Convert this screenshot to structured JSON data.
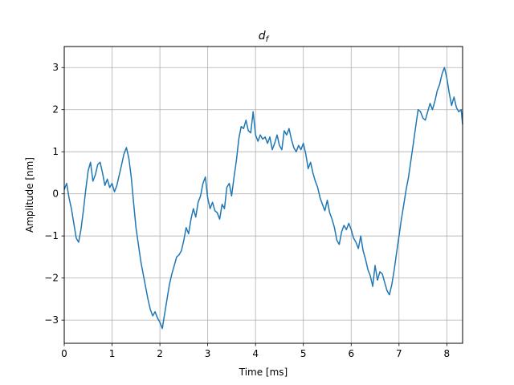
{
  "chart_data": {
    "type": "line",
    "title": "d_f",
    "title_main": "d",
    "title_sub": "f",
    "xlabel": "Time [ms]",
    "ylabel": "Amplitude [nm]",
    "xlim": [
      0,
      8.33
    ],
    "ylim": [
      -3.55,
      3.5
    ],
    "xticks": [
      0,
      1,
      2,
      3,
      4,
      5,
      6,
      7,
      8
    ],
    "xtick_labels": [
      "0",
      "1",
      "2",
      "3",
      "4",
      "5",
      "6",
      "7",
      "8"
    ],
    "yticks": [
      -3,
      -2,
      -1,
      0,
      1,
      2,
      3
    ],
    "ytick_labels": [
      "−3",
      "−2",
      "−1",
      "0",
      "1",
      "2",
      "3"
    ],
    "grid": true,
    "line_color": "#1f77b4",
    "series": [
      {
        "x": [
          0.0,
          0.05,
          0.1,
          0.15,
          0.2,
          0.25,
          0.3,
          0.35,
          0.4,
          0.45,
          0.5,
          0.55,
          0.6,
          0.65,
          0.7,
          0.75,
          0.8,
          0.85,
          0.9,
          0.95,
          1.0,
          1.05,
          1.1,
          1.15,
          1.2,
          1.25,
          1.3,
          1.35,
          1.4,
          1.45,
          1.5,
          1.55,
          1.6,
          1.65,
          1.7,
          1.75,
          1.8,
          1.85,
          1.9,
          1.95,
          2.0,
          2.05,
          2.1,
          2.15,
          2.2,
          2.25,
          2.3,
          2.35,
          2.4,
          2.45,
          2.5,
          2.55,
          2.6,
          2.65,
          2.7,
          2.75,
          2.8,
          2.85,
          2.9,
          2.95,
          3.0,
          3.05,
          3.1,
          3.15,
          3.2,
          3.25,
          3.3,
          3.35,
          3.4,
          3.45,
          3.5,
          3.55,
          3.6,
          3.65,
          3.7,
          3.75,
          3.8,
          3.85,
          3.9,
          3.95,
          4.0,
          4.05,
          4.1,
          4.15,
          4.2,
          4.25,
          4.3,
          4.35,
          4.4,
          4.45,
          4.5,
          4.55,
          4.6,
          4.65,
          4.7,
          4.75,
          4.8,
          4.85,
          4.9,
          4.95,
          5.0,
          5.05,
          5.1,
          5.15,
          5.2,
          5.25,
          5.3,
          5.35,
          5.4,
          5.45,
          5.5,
          5.55,
          5.6,
          5.65,
          5.7,
          5.75,
          5.8,
          5.85,
          5.9,
          5.95,
          6.0,
          6.05,
          6.1,
          6.15,
          6.2,
          6.25,
          6.3,
          6.35,
          6.4,
          6.45,
          6.5,
          6.55,
          6.6,
          6.65,
          6.7,
          6.75,
          6.8,
          6.85,
          6.9,
          6.95,
          7.0,
          7.05,
          7.1,
          7.15,
          7.2,
          7.25,
          7.3,
          7.35,
          7.4,
          7.45,
          7.5,
          7.55,
          7.6,
          7.65,
          7.7,
          7.75,
          7.8,
          7.85,
          7.9,
          7.95,
          8.0,
          8.05,
          8.1,
          8.15,
          8.2,
          8.25,
          8.3,
          8.33
        ],
        "y": [
          0.1,
          0.25,
          -0.1,
          -0.35,
          -0.7,
          -1.05,
          -1.15,
          -0.85,
          -0.4,
          0.1,
          0.55,
          0.75,
          0.3,
          0.45,
          0.7,
          0.75,
          0.5,
          0.2,
          0.35,
          0.15,
          0.25,
          0.05,
          0.2,
          0.45,
          0.7,
          0.95,
          1.1,
          0.85,
          0.4,
          -0.2,
          -0.8,
          -1.2,
          -1.6,
          -1.9,
          -2.2,
          -2.5,
          -2.75,
          -2.9,
          -2.8,
          -2.95,
          -3.05,
          -3.2,
          -2.85,
          -2.5,
          -2.15,
          -1.9,
          -1.7,
          -1.5,
          -1.45,
          -1.35,
          -1.1,
          -0.8,
          -0.95,
          -0.6,
          -0.35,
          -0.55,
          -0.2,
          -0.05,
          0.25,
          0.4,
          -0.1,
          -0.35,
          -0.2,
          -0.4,
          -0.45,
          -0.6,
          -0.25,
          -0.35,
          0.15,
          0.25,
          -0.05,
          0.4,
          0.8,
          1.3,
          1.6,
          1.55,
          1.75,
          1.5,
          1.45,
          1.95,
          1.4,
          1.25,
          1.4,
          1.3,
          1.35,
          1.2,
          1.35,
          1.05,
          1.2,
          1.4,
          1.15,
          1.05,
          1.5,
          1.4,
          1.55,
          1.3,
          1.1,
          1.0,
          1.15,
          1.05,
          1.2,
          0.95,
          0.6,
          0.75,
          0.5,
          0.3,
          0.15,
          -0.1,
          -0.25,
          -0.4,
          -0.15,
          -0.45,
          -0.6,
          -0.8,
          -1.1,
          -1.2,
          -0.9,
          -0.75,
          -0.85,
          -0.7,
          -0.85,
          -1.05,
          -1.15,
          -1.3,
          -1.0,
          -1.35,
          -1.55,
          -1.8,
          -1.95,
          -2.2,
          -1.7,
          -2.05,
          -1.85,
          -1.9,
          -2.1,
          -2.3,
          -2.4,
          -2.15,
          -1.8,
          -1.4,
          -1.0,
          -0.6,
          -0.25,
          0.1,
          0.4,
          0.8,
          1.2,
          1.6,
          2.0,
          1.95,
          1.8,
          1.75,
          1.95,
          2.15,
          2.0,
          2.2,
          2.45,
          2.6,
          2.85,
          3.0,
          2.75,
          2.4,
          2.1,
          2.3,
          2.05,
          1.95,
          2.0,
          1.65
        ]
      }
    ]
  }
}
